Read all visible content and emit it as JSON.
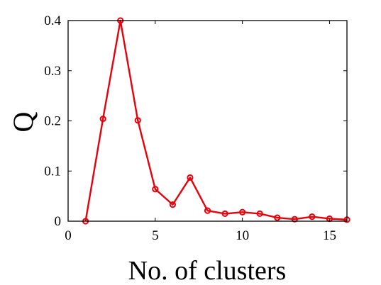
{
  "chart_data": {
    "type": "line",
    "title": "",
    "xlabel": "No. of clusters",
    "ylabel": "Q",
    "xlim": [
      0,
      16
    ],
    "ylim": [
      0,
      0.4
    ],
    "xticks": [
      0,
      5,
      10,
      15
    ],
    "xtick_labels": [
      "0",
      "5",
      "10",
      "15"
    ],
    "yticks": [
      0,
      0.1,
      0.2,
      0.3,
      0.4
    ],
    "ytick_labels": [
      "0",
      "0.1",
      "0.2",
      "0.3",
      "0.4"
    ],
    "grid": false,
    "series": [
      {
        "color": "#e8000b",
        "marker": "circle",
        "x": [
          1,
          2,
          3,
          4,
          5,
          6,
          7,
          8,
          9,
          10,
          11,
          12,
          13,
          14,
          15,
          16
        ],
        "y": [
          0.0,
          0.204,
          0.4,
          0.201,
          0.064,
          0.033,
          0.087,
          0.021,
          0.015,
          0.018,
          0.015,
          0.007,
          0.004,
          0.009,
          0.005,
          0.003
        ]
      }
    ]
  }
}
